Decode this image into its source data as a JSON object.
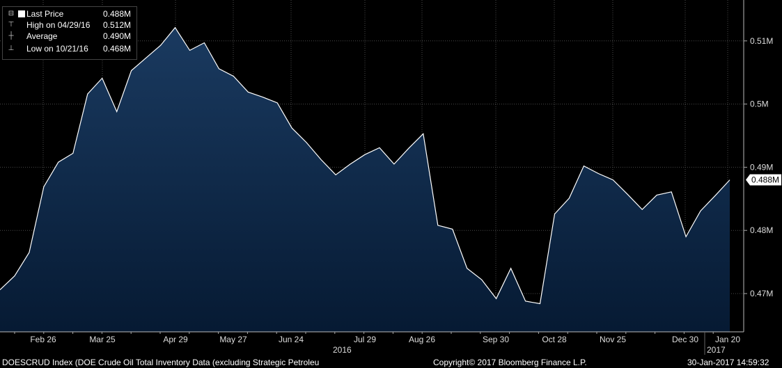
{
  "chart_data": {
    "type": "area",
    "x_tick_labels": [
      "Feb 26",
      "Mar 25",
      "Apr 29",
      "May 27",
      "Jun 24",
      "Jul 29",
      "Aug 26",
      "Sep 30",
      "Oct 28",
      "Nov 25",
      "Dec 30",
      "Jan 20"
    ],
    "year_labels": [
      "2016",
      "2017"
    ],
    "y_tick_labels": [
      "0.47M",
      "0.48M",
      "0.49M",
      "0.5M",
      "0.51M"
    ],
    "ylim": [
      0.4641,
      0.5163
    ],
    "y_unit": "M",
    "values": [
      0.4706,
      0.4728,
      0.4765,
      0.4869,
      0.4908,
      0.4922,
      0.5016,
      0.5041,
      0.4988,
      0.5053,
      0.5073,
      0.5093,
      0.5121,
      0.5085,
      0.5097,
      0.5056,
      0.5044,
      0.5019,
      0.5011,
      0.5002,
      0.4962,
      0.4939,
      0.4912,
      0.4888,
      0.4905,
      0.492,
      0.4931,
      0.4905,
      0.493,
      0.4953,
      0.4808,
      0.4802,
      0.474,
      0.4722,
      0.4692,
      0.474,
      0.4688,
      0.4684,
      0.4826,
      0.4851,
      0.4902,
      0.489,
      0.488,
      0.4857,
      0.4833,
      0.4856,
      0.4861,
      0.479,
      0.4831,
      0.4855,
      0.488
    ],
    "last_value_label": "0.488M",
    "colors": {
      "line": "#ffffff",
      "area_top": "#1a3a60",
      "area_bottom": "#061a33",
      "grid": "#4a4a4a",
      "tag_bg": "#ffffff",
      "tag_text": "#000000"
    },
    "legend": [
      {
        "symbol": "square",
        "name": "Last Price",
        "value": "0.488M"
      },
      {
        "symbol": "high",
        "name": "High on 04/29/16",
        "value": "0.512M"
      },
      {
        "symbol": "average",
        "name": "Average",
        "value": "0.490M"
      },
      {
        "symbol": "low",
        "name": "Low on 10/21/16",
        "value": "0.468M"
      }
    ],
    "grid": true
  },
  "footer": {
    "description": "DOESCRUD Index (DOE Crude Oil Total Inventory Data (excluding Strategic Petroleu",
    "copyright": "Copyright© 2017 Bloomberg Finance L.P.",
    "timestamp": "30-Jan-2017 14:59:32"
  }
}
